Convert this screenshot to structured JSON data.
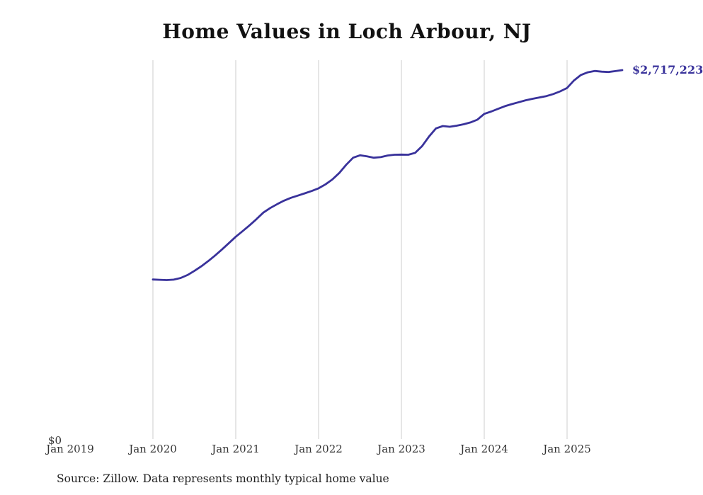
{
  "title": "Home Values in Loch Arbour, NJ",
  "source_note": "Source: Zillow. Data represents monthly typical home value",
  "end_label": "$2,717,223",
  "y_zero_label": "$0",
  "colors": {
    "line": "#39329b",
    "gridline": "#cccccc",
    "title": "#111111",
    "axis_text": "#333333"
  },
  "chart_data": {
    "type": "line",
    "title": "Home Values in Loch Arbour, NJ",
    "series_name": "Monthly typical home value",
    "frequency": "monthly",
    "start_month": "2020-01",
    "end_month": "2025-09",
    "x_tick_labels": [
      "Jan 2019",
      "Jan 2020",
      "Jan 2021",
      "Jan 2022",
      "Jan 2023",
      "Jan 2024",
      "Jan 2025"
    ],
    "y_tick_labels": [
      "$0"
    ],
    "ylim": [
      0,
      2717223
    ],
    "grid": "vertical-gridlines-at-each-january",
    "legend": "none",
    "last_value_label": "$2,717,223",
    "values": [
      1175000,
      1173000,
      1171000,
      1174000,
      1186000,
      1208000,
      1238000,
      1272000,
      1310000,
      1352000,
      1396000,
      1443000,
      1490000,
      1532000,
      1574000,
      1620000,
      1668000,
      1702000,
      1730000,
      1756000,
      1777000,
      1793000,
      1810000,
      1827000,
      1847000,
      1876000,
      1912000,
      1960000,
      2020000,
      2072000,
      2090000,
      2082000,
      2072000,
      2076000,
      2088000,
      2094000,
      2095000,
      2094000,
      2108000,
      2158000,
      2228000,
      2288000,
      2305000,
      2300000,
      2308000,
      2318000,
      2332000,
      2352000,
      2395000,
      2412000,
      2432000,
      2452000,
      2467000,
      2481000,
      2495000,
      2506000,
      2516000,
      2526000,
      2541000,
      2561000,
      2586000,
      2641000,
      2681000,
      2701000,
      2711000,
      2706000,
      2703000,
      2710000,
      2717223
    ]
  }
}
